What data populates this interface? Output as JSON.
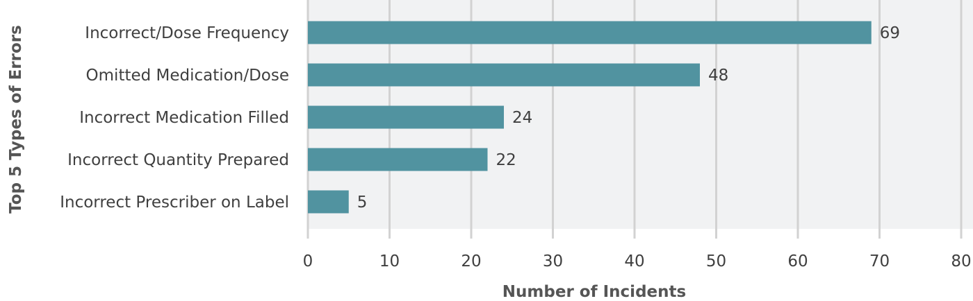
{
  "chart_data": {
    "type": "bar",
    "orientation": "horizontal",
    "categories": [
      "Incorrect/Dose Frequency",
      "Omitted Medication/Dose",
      "Incorrect Medication Filled",
      "Incorrect Quantity Prepared",
      "Incorrect Prescriber on Label"
    ],
    "values": [
      69,
      48,
      24,
      22,
      5
    ],
    "xlabel": "Number of Incidents",
    "ylabel": "Top 5 Types of Errors",
    "xlim": [
      0,
      80
    ],
    "xticks": [
      0,
      10,
      20,
      30,
      40,
      50,
      60,
      70,
      80
    ],
    "grid": true,
    "data_labels": true,
    "colors": {
      "bar": "#5193a0",
      "plot_background": "#f1f2f3",
      "gridline": "#d2d2d2",
      "text": "#3f3f3f",
      "axis_title": "#555555"
    }
  }
}
